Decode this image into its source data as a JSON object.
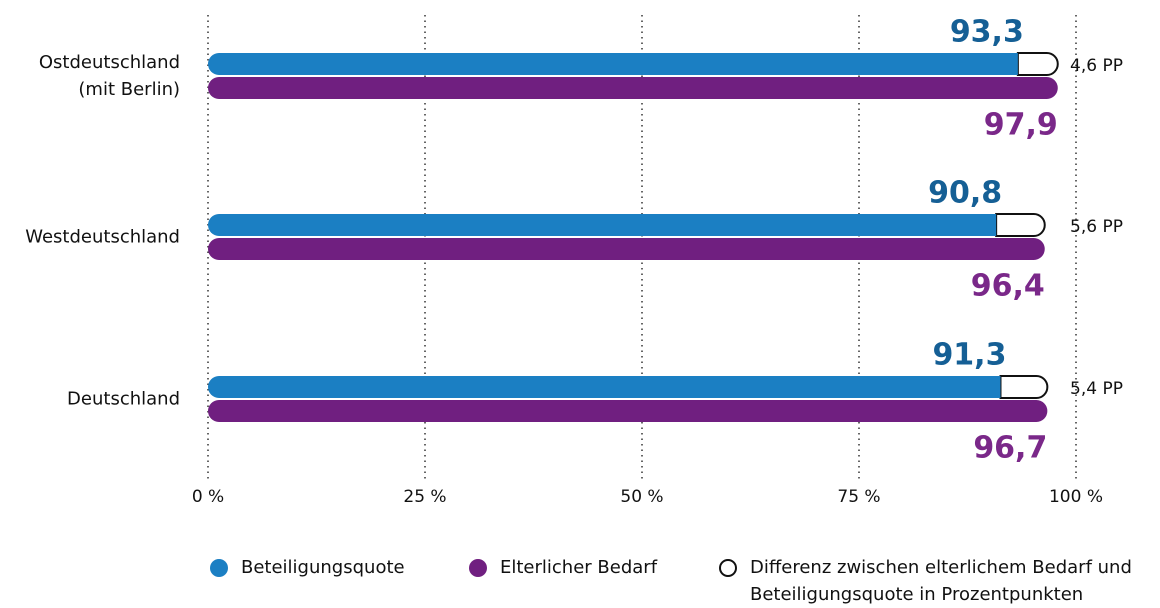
{
  "chart_data": {
    "type": "bar",
    "orientation": "horizontal",
    "categories": [
      "Ostdeutschland\n(mit Berlin)",
      "Westdeutschland",
      "Deutschland"
    ],
    "series": [
      {
        "name": "Beteiligungsquote",
        "color": "#1b7fc3",
        "label_color": "#155f95",
        "values": [
          93.3,
          90.8,
          91.3
        ],
        "value_labels": [
          "93,3",
          "90,8",
          "91,3"
        ]
      },
      {
        "name": "Elterlicher Bedarf",
        "color": "#701f80",
        "label_color": "#7a2889",
        "values": [
          97.9,
          96.4,
          96.7
        ],
        "value_labels": [
          "97,9",
          "96,4",
          "96,7"
        ]
      },
      {
        "name": "Differenz zwischen elterlichem Bedarf und Beteiligungsquote in Prozentpunkten",
        "color": "#ffffff",
        "stacked_on": 0,
        "values": [
          4.6,
          5.6,
          5.4
        ],
        "value_labels": [
          "4,6 PP",
          "5,6 PP",
          "5,4 PP"
        ]
      }
    ],
    "xlim": [
      0,
      100
    ],
    "xticks": [
      {
        "value": 0,
        "label": "0 %"
      },
      {
        "value": 25,
        "label": "25 %"
      },
      {
        "value": 50,
        "label": "50 %"
      },
      {
        "value": 75,
        "label": "75 %"
      },
      {
        "value": 100,
        "label": "100 %"
      }
    ],
    "grid": true
  }
}
